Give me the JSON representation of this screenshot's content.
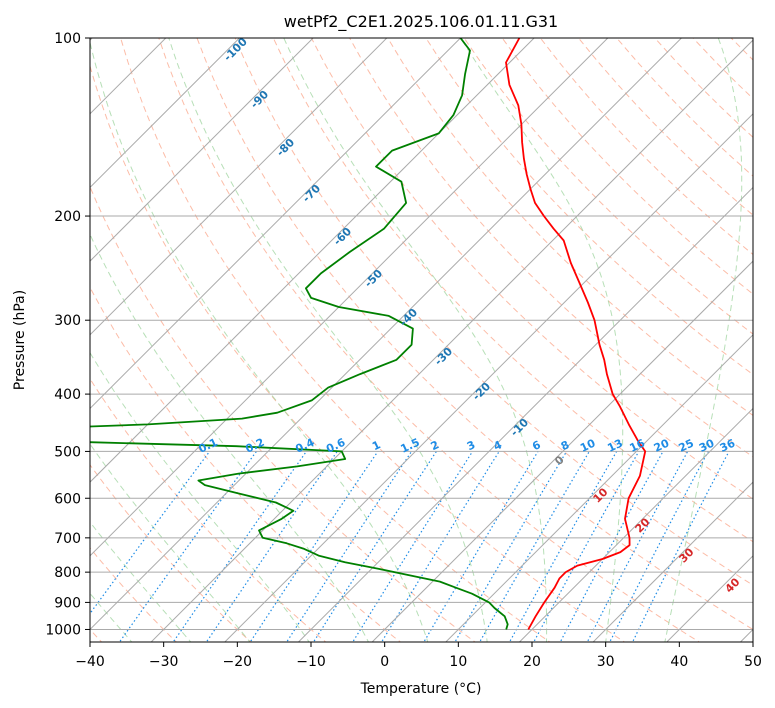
{
  "chart_data": {
    "type": "line",
    "subtype": "skew-T log-P diagram",
    "title": "wetPf2_C2E1.2025.106.01.11.G31",
    "xlabel": "Temperature (°C)",
    "ylabel": "Pressure (hPa)",
    "xlim": [
      -40,
      50
    ],
    "ylim": [
      1050,
      100
    ],
    "y_scale": "log",
    "x_ticks": [
      -40,
      -30,
      -20,
      -10,
      0,
      10,
      20,
      30,
      40,
      50
    ],
    "x_tick_labels": [
      "−40",
      "−30",
      "−20",
      "−10",
      "0",
      "10",
      "20",
      "30",
      "40",
      "50"
    ],
    "y_ticks": [
      1000,
      900,
      800,
      700,
      600,
      500,
      400,
      300,
      200,
      100
    ],
    "y_tick_labels": [
      "1000",
      "900",
      "800",
      "700",
      "600",
      "500",
      "400",
      "300",
      "200",
      "100"
    ],
    "grid": true,
    "series": [
      {
        "color": "#ff0000",
        "points": [
          [
            1000,
            19.5
          ],
          [
            950,
            18.7
          ],
          [
            900,
            18.0
          ],
          [
            850,
            17.4
          ],
          [
            820,
            16.8
          ],
          [
            800,
            16.8
          ],
          [
            780,
            17.5
          ],
          [
            760,
            20.0
          ],
          [
            740,
            21.5
          ],
          [
            720,
            21.8
          ],
          [
            700,
            20.8
          ],
          [
            650,
            17.6
          ],
          [
            600,
            15.3
          ],
          [
            550,
            13.8
          ],
          [
            500,
            11.2
          ],
          [
            480,
            8.8
          ],
          [
            450,
            5.3
          ],
          [
            420,
            1.7
          ],
          [
            400,
            -1.0
          ],
          [
            370,
            -4.5
          ],
          [
            350,
            -6.8
          ],
          [
            330,
            -9.5
          ],
          [
            300,
            -13.5
          ],
          [
            280,
            -16.8
          ],
          [
            260,
            -20.5
          ],
          [
            240,
            -24.5
          ],
          [
            220,
            -28.5
          ],
          [
            210,
            -31.5
          ],
          [
            200,
            -34.5
          ],
          [
            190,
            -37.5
          ],
          [
            180,
            -40.0
          ],
          [
            170,
            -42.5
          ],
          [
            160,
            -45.0
          ],
          [
            150,
            -47.5
          ],
          [
            140,
            -50.0
          ],
          [
            130,
            -53.0
          ],
          [
            120,
            -57.0
          ],
          [
            110,
            -60.5
          ],
          [
            100,
            -62.0
          ]
        ]
      },
      {
        "color": "#008000",
        "points": [
          [
            1000,
            16.5
          ],
          [
            980,
            16.0
          ],
          [
            950,
            14.5
          ],
          [
            920,
            12.0
          ],
          [
            900,
            10.5
          ],
          [
            870,
            7.0
          ],
          [
            850,
            4.0
          ],
          [
            830,
            1.0
          ],
          [
            810,
            -4.0
          ],
          [
            790,
            -9.0
          ],
          [
            770,
            -14.5
          ],
          [
            750,
            -19.0
          ],
          [
            730,
            -22.0
          ],
          [
            715,
            -25.0
          ],
          [
            700,
            -29.0
          ],
          [
            680,
            -30.5
          ],
          [
            650,
            -29.0
          ],
          [
            630,
            -28.5
          ],
          [
            610,
            -32.0
          ],
          [
            590,
            -38.0
          ],
          [
            570,
            -44.0
          ],
          [
            560,
            -45.5
          ],
          [
            545,
            -41.0
          ],
          [
            530,
            -34.0
          ],
          [
            515,
            -28.5
          ],
          [
            500,
            -30.0
          ],
          [
            490,
            -45.0
          ],
          [
            480,
            -72.0
          ],
          [
            470,
            -95.0
          ],
          [
            460,
            -80.0
          ],
          [
            450,
            -60.0
          ],
          [
            440,
            -48.0
          ],
          [
            430,
            -44.0
          ],
          [
            410,
            -41.0
          ],
          [
            390,
            -40.5
          ],
          [
            370,
            -38.0
          ],
          [
            350,
            -35.0
          ],
          [
            330,
            -35.0
          ],
          [
            310,
            -37.0
          ],
          [
            295,
            -42.0
          ],
          [
            285,
            -50.0
          ],
          [
            275,
            -55.0
          ],
          [
            265,
            -57.0
          ],
          [
            250,
            -57.0
          ],
          [
            230,
            -56.0
          ],
          [
            210,
            -54.5
          ],
          [
            190,
            -55.0
          ],
          [
            175,
            -58.5
          ],
          [
            165,
            -64.0
          ],
          [
            155,
            -64.0
          ],
          [
            145,
            -60.0
          ],
          [
            135,
            -60.5
          ],
          [
            125,
            -62.0
          ],
          [
            115,
            -64.5
          ],
          [
            105,
            -67.0
          ],
          [
            100,
            -70.0
          ]
        ]
      }
    ],
    "background_lines": {
      "dry_adiabats": "dashed, light orange",
      "moist_adiabats": "dashed, light green",
      "mixing_ratio": "dotted, blue",
      "isotherms": "solid, gray, skewed"
    },
    "isotherm_labels": [
      "-100",
      "-90",
      "-80",
      "-70",
      "-60",
      "-50",
      "-40",
      "-30",
      "-20",
      "-10",
      "0",
      "10",
      "20",
      "30",
      "40"
    ],
    "mixing_ratio_labels": [
      "0.1",
      "0.2",
      "0.4",
      "0.6",
      "1",
      "1.5",
      "2",
      "3",
      "4",
      "6",
      "8",
      "10",
      "13",
      "16",
      "20",
      "25",
      "30",
      "36"
    ]
  }
}
